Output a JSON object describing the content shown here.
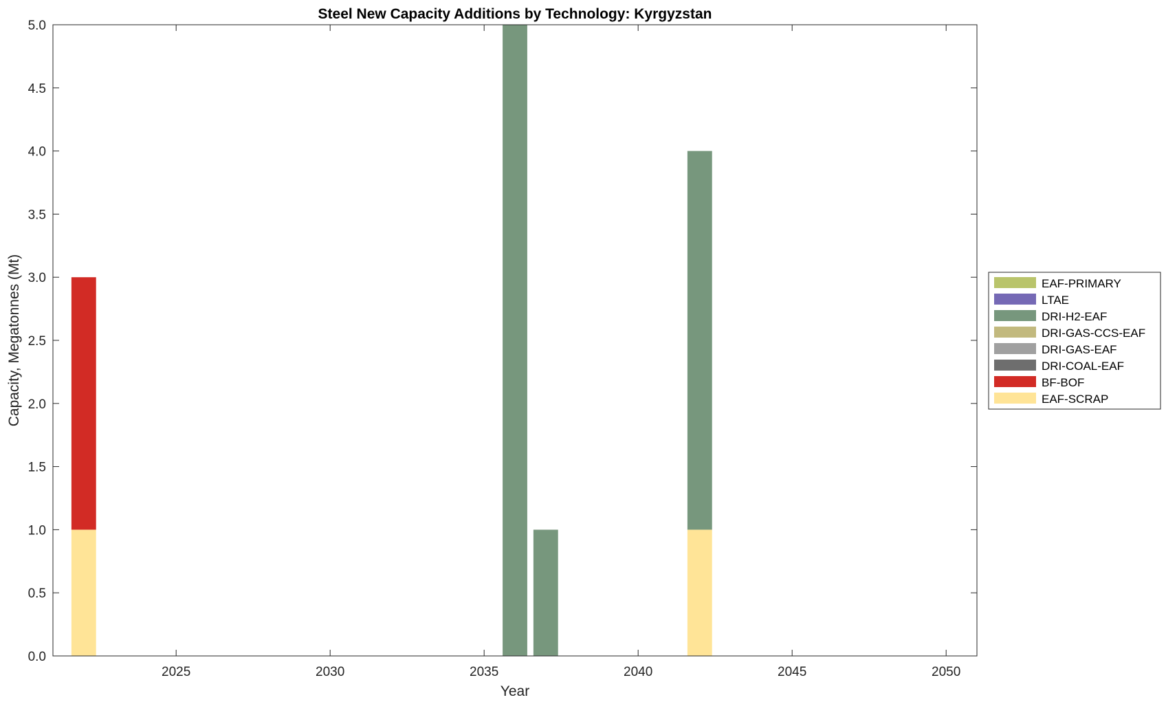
{
  "chart_data": {
    "type": "bar",
    "stacked": true,
    "title": "Steel New Capacity Additions by Technology: Kyrgyzstan",
    "xlabel": "Year",
    "ylabel": "Capacity, Megatonnes (Mt)",
    "xlim": [
      2021,
      2051
    ],
    "ylim": [
      0,
      5
    ],
    "xticks": [
      2025,
      2030,
      2035,
      2040,
      2045,
      2050
    ],
    "yticks": [
      0.0,
      0.5,
      1.0,
      1.5,
      2.0,
      2.5,
      3.0,
      3.5,
      4.0,
      4.5,
      5.0
    ],
    "ytick_labels": [
      "0.0",
      "0.5",
      "1.0",
      "1.5",
      "2.0",
      "2.5",
      "3.0",
      "3.5",
      "4.0",
      "4.5",
      "5.0"
    ],
    "grid": false,
    "legend_position": "right",
    "categories": [
      2022,
      2036,
      2037,
      2042
    ],
    "series": [
      {
        "name": "EAF-SCRAP",
        "color": "#ffe497",
        "values": [
          1,
          0,
          0,
          1
        ]
      },
      {
        "name": "BF-BOF",
        "color": "#d22b25",
        "values": [
          2,
          0,
          0,
          0
        ]
      },
      {
        "name": "DRI-COAL-EAF",
        "color": "#6e6e6e",
        "values": [
          0,
          0,
          0,
          0
        ]
      },
      {
        "name": "DRI-GAS-EAF",
        "color": "#a0a0a0",
        "values": [
          0,
          0,
          0,
          0
        ]
      },
      {
        "name": "DRI-GAS-CCS-EAF",
        "color": "#c2b97e",
        "values": [
          0,
          0,
          0,
          0
        ]
      },
      {
        "name": "DRI-H2-EAF",
        "color": "#77977d",
        "values": [
          0,
          5,
          1,
          3
        ]
      },
      {
        "name": "LTAE",
        "color": "#7569b5",
        "values": [
          0,
          0,
          0,
          0
        ]
      },
      {
        "name": "EAF-PRIMARY",
        "color": "#b9c46b",
        "values": [
          0,
          0,
          0,
          0
        ]
      }
    ],
    "legend_order": [
      "EAF-PRIMARY",
      "LTAE",
      "DRI-H2-EAF",
      "DRI-GAS-CCS-EAF",
      "DRI-GAS-EAF",
      "DRI-COAL-EAF",
      "BF-BOF",
      "EAF-SCRAP"
    ]
  }
}
